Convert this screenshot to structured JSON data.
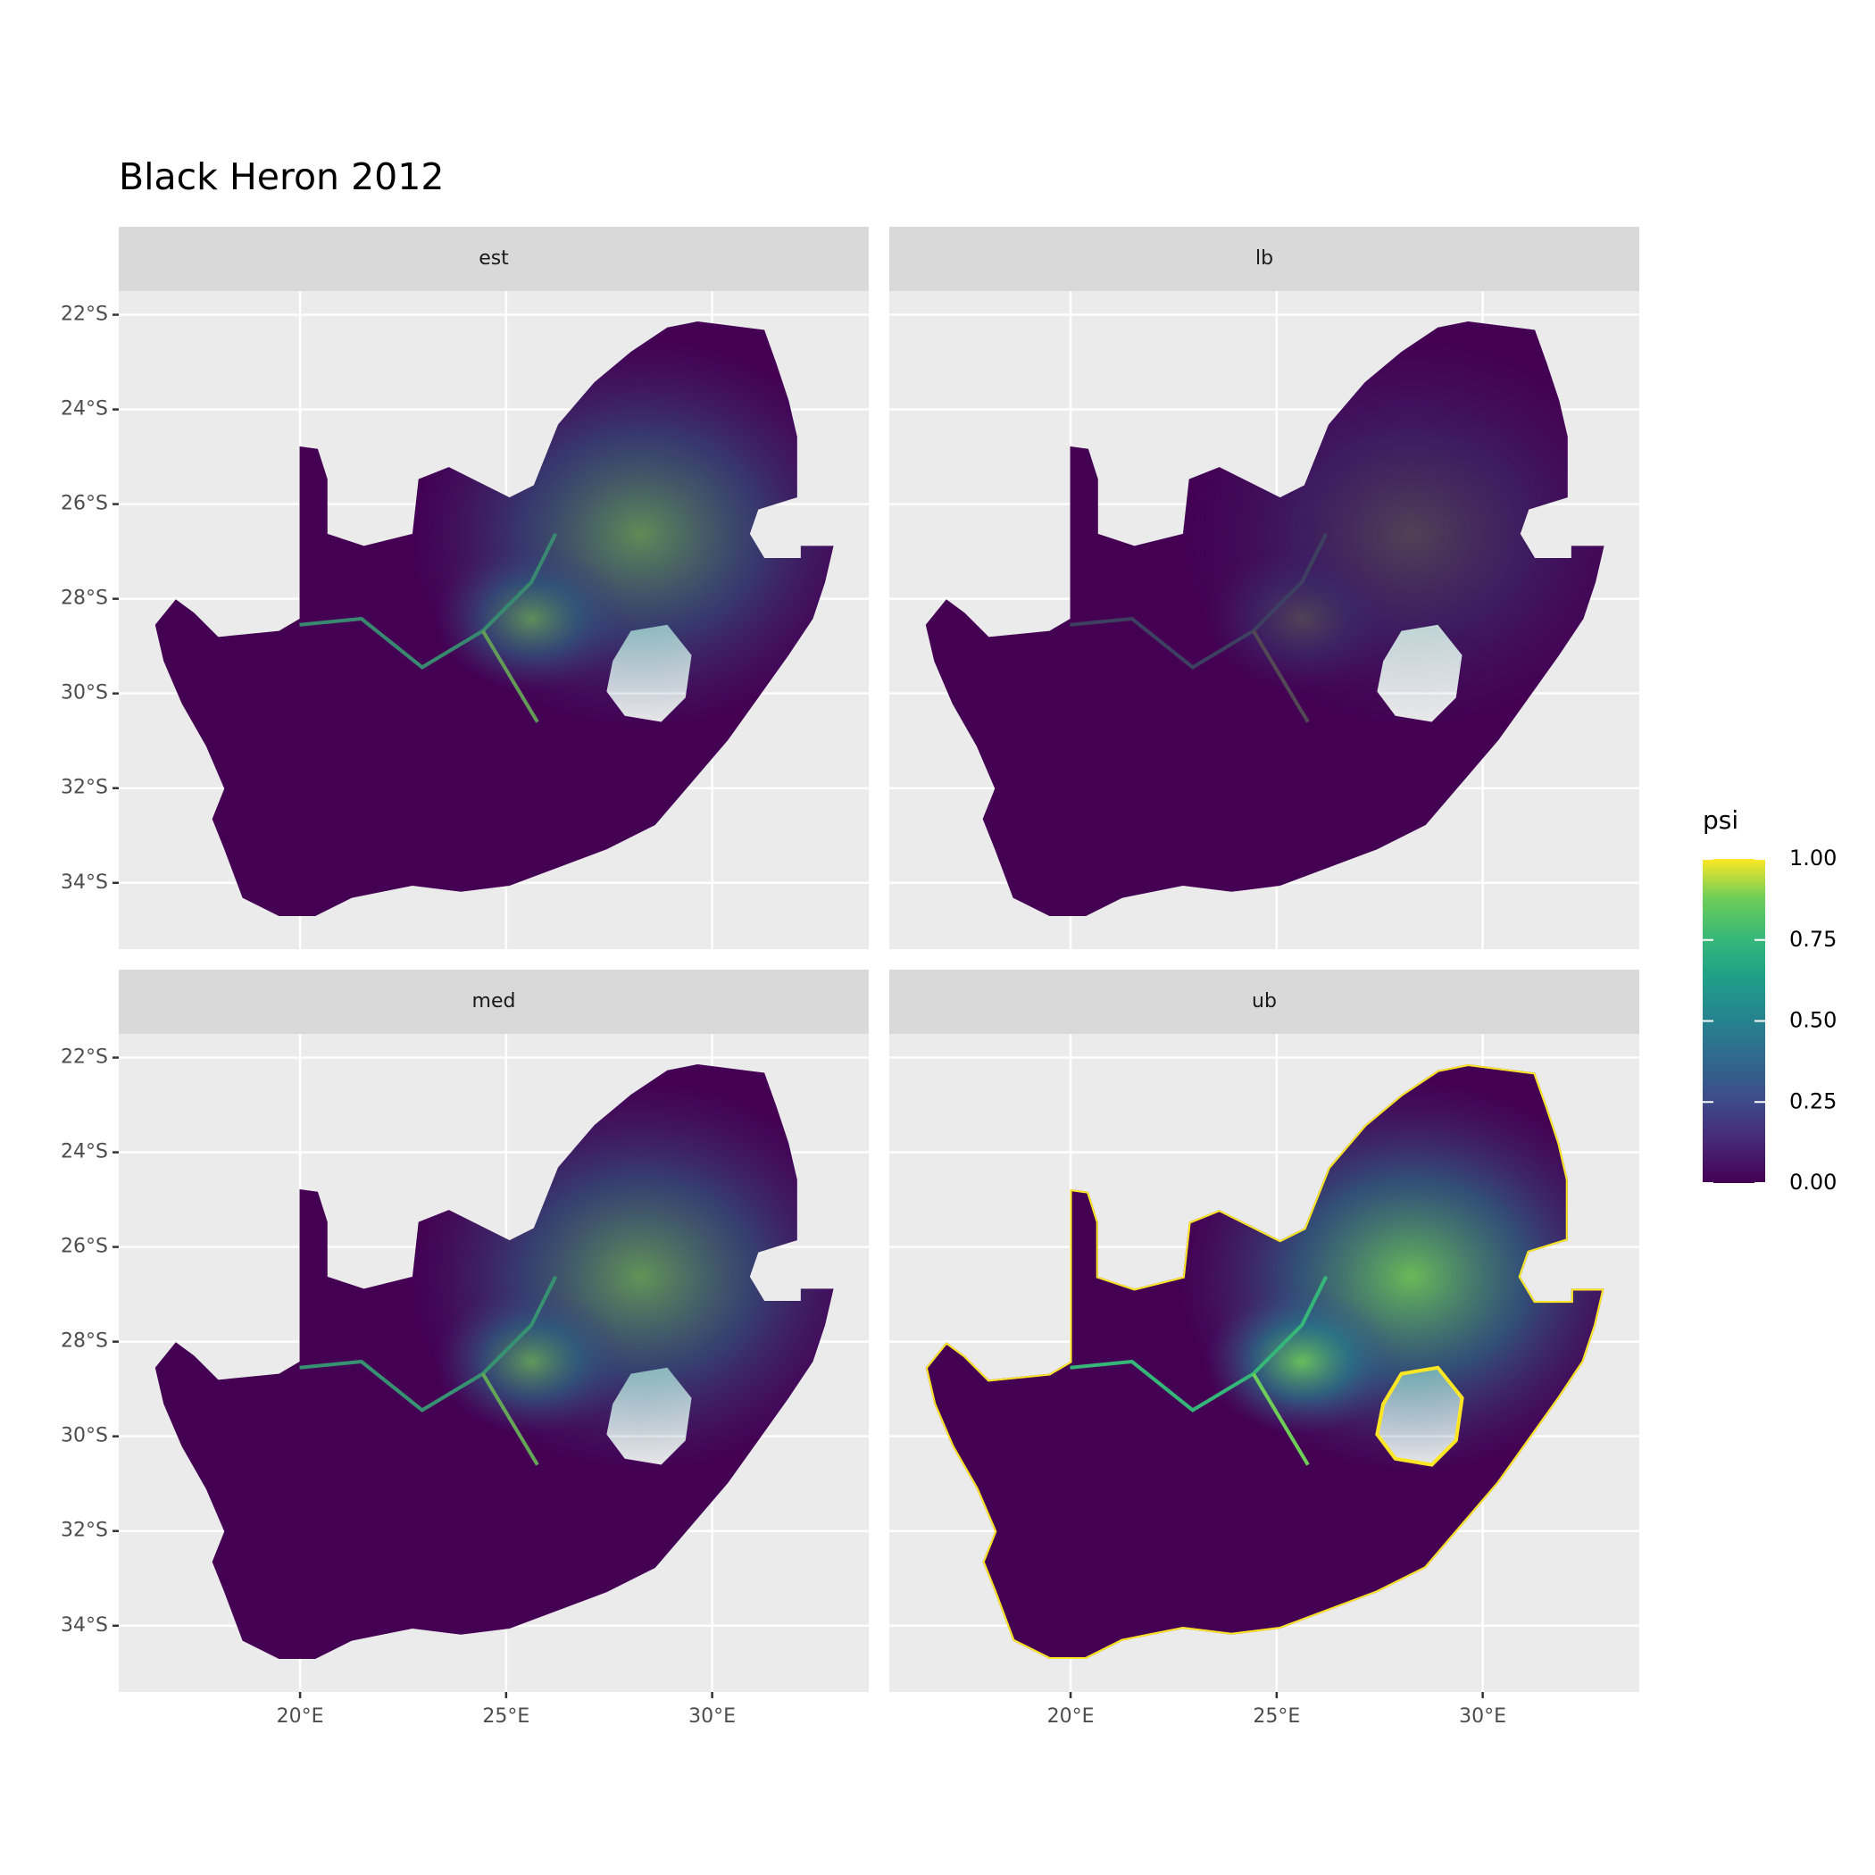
{
  "chart_data": {
    "type": "raster-map",
    "title": "Black Heron 2012",
    "facets": [
      "est",
      "lb",
      "med",
      "ub"
    ],
    "xlim": [
      15.6,
      33.8
    ],
    "xticks": [
      {
        "value": 20,
        "label": "20°E"
      },
      {
        "value": 25,
        "label": "25°E"
      },
      {
        "value": 30,
        "label": "30°E"
      }
    ],
    "ylim": [
      -35.4,
      -21.5
    ],
    "yticks": [
      {
        "value": -22,
        "label": "22°S"
      },
      {
        "value": -24,
        "label": "24°S"
      },
      {
        "value": -26,
        "label": "26°S"
      },
      {
        "value": -28,
        "label": "28°S"
      },
      {
        "value": -30,
        "label": "30°S"
      },
      {
        "value": -32,
        "label": "32°S"
      },
      {
        "value": -34,
        "label": "34°S"
      }
    ],
    "legend": {
      "title": "psi",
      "lim": [
        0,
        1
      ],
      "ticks": [
        {
          "value": 0,
          "label": "0.00"
        },
        {
          "value": 0.25,
          "label": "0.25"
        },
        {
          "value": 0.5,
          "label": "0.50"
        },
        {
          "value": 0.75,
          "label": "0.75"
        },
        {
          "value": 1,
          "label": "1.00"
        }
      ]
    },
    "grid": true
  }
}
